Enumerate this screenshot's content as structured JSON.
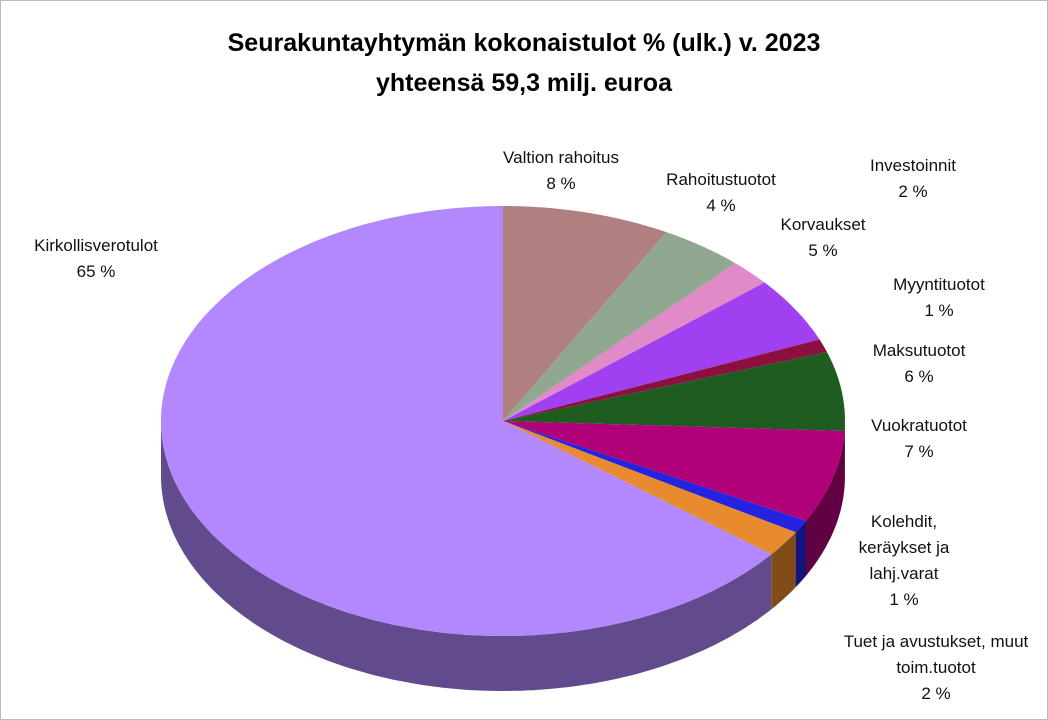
{
  "chart_data": {
    "type": "pie",
    "title": "Seurakuntayhtymän kokonaistulot % (ulk.) v. 2023",
    "subtitle": "yhteensä 59,3 milj. euroa",
    "categories": [
      "Valtion rahoitus",
      "Rahoitustuotot",
      "Investoinnit",
      "Korvaukset",
      "Myyntituotot",
      "Maksutuotot",
      "Vuokratuotot",
      "Kolehdit, keräykset ja lahj.varat",
      "Tuet ja avustukset, muut toim.tuotot",
      "Kirkollisverotulot"
    ],
    "values": [
      8,
      4,
      2,
      5,
      1,
      6,
      7,
      1,
      2,
      65
    ],
    "value_labels": [
      "8 %",
      "4 %",
      "2 %",
      "5 %",
      "1 %",
      "6 %",
      "7 %",
      "1 %",
      "2 %",
      "65 %"
    ],
    "colors": [
      "#b08080",
      "#8fa88f",
      "#e08ac8",
      "#a040f0",
      "#8b1040",
      "#1f5c1f",
      "#b0007a",
      "#2424e0",
      "#e88a2e",
      "#b388ff"
    ]
  }
}
